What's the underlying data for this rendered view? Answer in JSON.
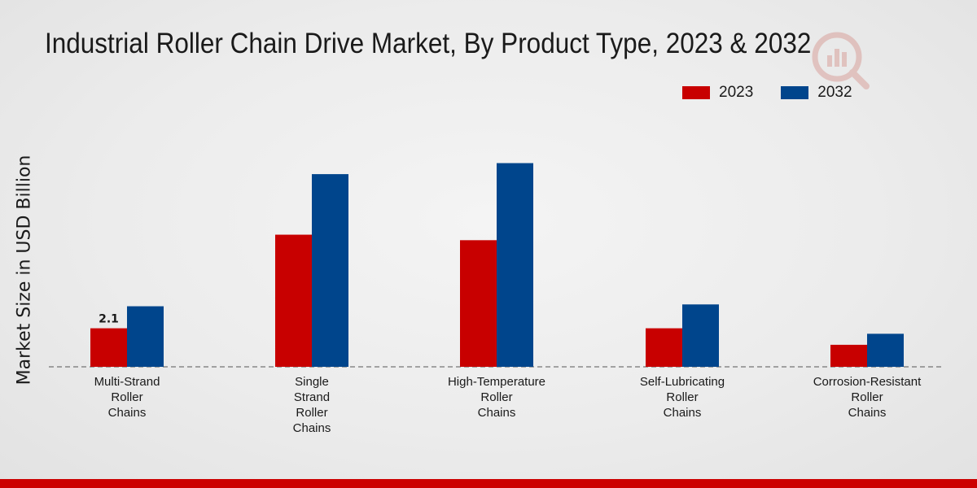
{
  "colors": {
    "series_2023": "#c80000",
    "series_2032": "#00458c",
    "band": "#cc0000"
  },
  "chart_data": {
    "type": "bar",
    "title": "Industrial Roller Chain Drive Market, By Product Type, 2023 & 2032",
    "xlabel": "",
    "ylabel": "Market Size in USD Billion",
    "categories": [
      "Multi-Strand Roller Chains",
      "Single Strand Roller Chains",
      "High-Temperature Roller Chains",
      "Self-Lubricating Roller Chains",
      "Corrosion-Resistant Roller Chains"
    ],
    "category_lines": [
      [
        "Multi-Strand",
        "Roller",
        "Chains"
      ],
      [
        "Single",
        "Strand",
        "Roller",
        "Chains"
      ],
      [
        "High-Temperature",
        "Roller",
        "Chains"
      ],
      [
        "Self-Lubricating",
        "Roller",
        "Chains"
      ],
      [
        "Corrosion-Resistant",
        "Roller",
        "Chains"
      ]
    ],
    "series": [
      {
        "name": "2023",
        "values": [
          2.1,
          7.2,
          6.9,
          2.1,
          1.2
        ]
      },
      {
        "name": "2032",
        "values": [
          3.3,
          10.5,
          11.1,
          3.4,
          1.8
        ]
      }
    ],
    "data_labels": [
      {
        "series": 0,
        "index": 0,
        "text": "2.1"
      }
    ],
    "ylim": [
      0,
      16
    ],
    "grid": false,
    "legend": "top-right"
  }
}
